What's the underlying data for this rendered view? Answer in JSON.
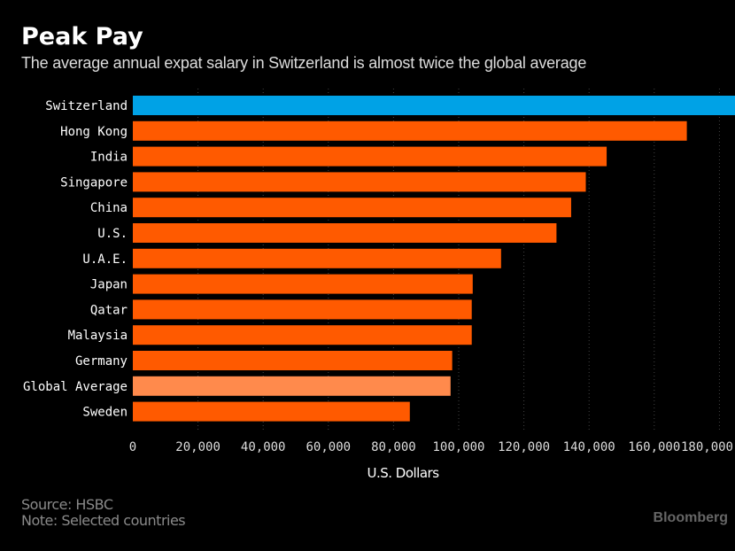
{
  "chart_data": {
    "type": "bar",
    "orientation": "horizontal",
    "title": "Peak Pay",
    "subtitle": "The average annual expat salary in Switzerland is almost twice the global average",
    "xlabel": "U.S. Dollars",
    "ylabel": "",
    "categories": [
      "Switzerland",
      "Hong Kong",
      "India",
      "Singapore",
      "China",
      "U.S.",
      "U.A.E.",
      "Japan",
      "Qatar",
      "Malaysia",
      "Germany",
      "Global Average",
      "Sweden"
    ],
    "values": [
      203000,
      170000,
      145400,
      139000,
      134500,
      130000,
      113000,
      104300,
      104000,
      104000,
      98000,
      97500,
      85000
    ],
    "highlight": {
      "Switzerland": "#00a2e6",
      "Global Average": "#ff8a4c"
    },
    "default_color": "#ff5a00",
    "xticks": [
      0,
      20000,
      40000,
      60000,
      80000,
      100000,
      120000,
      140000,
      160000,
      180000
    ],
    "xtick_labels": [
      "0",
      "20,000",
      "40,000",
      "60,000",
      "80,000",
      "100,000",
      "120,000",
      "140,000",
      "160,000",
      "180,000"
    ],
    "xlim": [
      0,
      200000
    ],
    "grid": "vertical dotted",
    "source": "Source: HSBC",
    "note": "Note: Selected countries"
  },
  "branding": {
    "logo": "Bloomberg"
  }
}
